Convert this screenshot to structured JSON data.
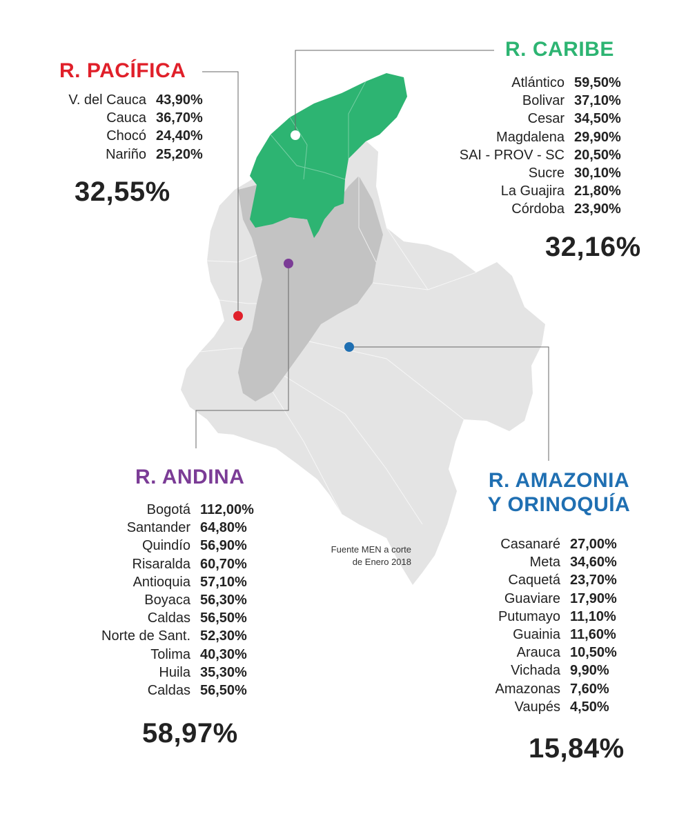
{
  "colors": {
    "pacifica": "#e0202a",
    "caribe": "#2db472",
    "andina": "#7b3c96",
    "amazonia": "#1f6fb2",
    "map_light": "#e4e4e4",
    "map_dark": "#c3c3c3",
    "line": "#666666"
  },
  "pacifica": {
    "title": "R. PACÍFICA",
    "rows": [
      {
        "name": "V. del Cauca",
        "value": "43,90%"
      },
      {
        "name": "Cauca",
        "value": "36,70%"
      },
      {
        "name": "Chocó",
        "value": "24,40%"
      },
      {
        "name": "Nariño",
        "value": "25,20%"
      }
    ],
    "total": "32,55%"
  },
  "caribe": {
    "title": "R. CARIBE",
    "rows": [
      {
        "name": "Atlántico",
        "value": "59,50%"
      },
      {
        "name": "Bolivar",
        "value": "37,10%"
      },
      {
        "name": "Cesar",
        "value": "34,50%"
      },
      {
        "name": "Magdalena",
        "value": "29,90%"
      },
      {
        "name": "SAI - PROV - SC",
        "value": "20,50%"
      },
      {
        "name": "Sucre",
        "value": "30,10%"
      },
      {
        "name": "La Guajira",
        "value": "21,80%"
      },
      {
        "name": "Córdoba",
        "value": "23,90%"
      }
    ],
    "total": "32,16%"
  },
  "andina": {
    "title": "R. ANDINA",
    "rows": [
      {
        "name": "Bogotá",
        "value": "112,00%"
      },
      {
        "name": "Santander",
        "value": "64,80%"
      },
      {
        "name": "Quindío",
        "value": "56,90%"
      },
      {
        "name": "Risaralda",
        "value": "60,70%"
      },
      {
        "name": "Antioquia",
        "value": "57,10%"
      },
      {
        "name": "Boyaca",
        "value": "56,30%"
      },
      {
        "name": "Caldas",
        "value": "56,50%"
      },
      {
        "name": "Norte de Sant.",
        "value": "52,30%"
      },
      {
        "name": "Tolima",
        "value": "40,30%"
      },
      {
        "name": "Huila",
        "value": "35,30%"
      },
      {
        "name": "Caldas",
        "value": "56,50%"
      }
    ],
    "total": "58,97%"
  },
  "amazonia": {
    "title_line1": "R. AMAZONIA",
    "title_line2": "Y ORINOQUÍA",
    "rows": [
      {
        "name": "Casanaré",
        "value": "27,00%"
      },
      {
        "name": "Meta",
        "value": "34,60%"
      },
      {
        "name": "Caquetá",
        "value": "23,70%"
      },
      {
        "name": "Guaviare",
        "value": "17,90%"
      },
      {
        "name": "Putumayo",
        "value": "11,10%"
      },
      {
        "name": "Guainia",
        "value": "11,60%"
      },
      {
        "name": "Arauca",
        "value": "10,50%"
      },
      {
        "name": "Vichada",
        "value": "9,90%"
      },
      {
        "name": "Amazonas",
        "value": "7,60%"
      },
      {
        "name": "Vaupés",
        "value": "4,50%"
      }
    ],
    "total": "15,84%"
  },
  "source": {
    "line1": "Fuente MEN a corte",
    "line2": "de Enero 2018"
  }
}
